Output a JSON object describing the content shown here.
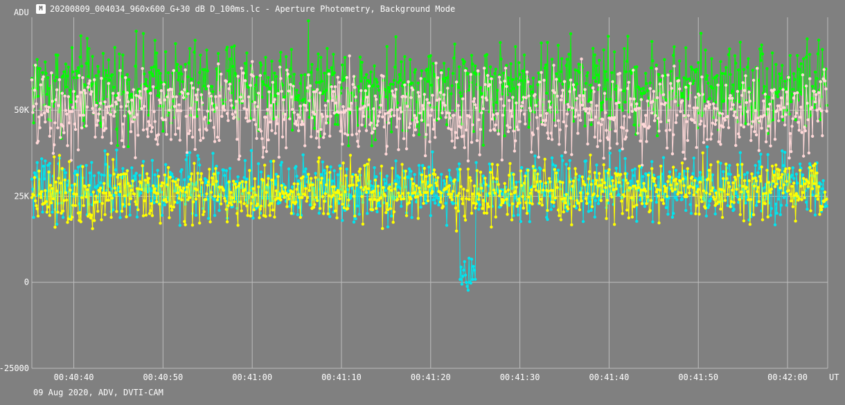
{
  "window": {
    "title": "20200809_004034_960x600_G+30 dB D_100ms.lc - Aperture Photometry, Background Mode",
    "icon": "lightcurve-app-icon",
    "icon_glyph": "M"
  },
  "footer": {
    "info": "09 Aug 2020, ADV, DVTI-CAM"
  },
  "chart_data": {
    "type": "line",
    "title": "",
    "ylabel": "ADU",
    "xlabel": "UT",
    "ylim": [
      -25000,
      77000
    ],
    "xlim": [
      "00:40:35.3",
      "00:42:04.5"
    ],
    "yticks": [
      {
        "value": 50000,
        "label": "50K"
      },
      {
        "value": 25000,
        "label": "25K"
      },
      {
        "value": 0,
        "label": "0"
      },
      {
        "value": -25000,
        "label": "-25000"
      }
    ],
    "xticks": [
      "00:40:40",
      "00:40:50",
      "00:41:00",
      "00:41:10",
      "00:41:20",
      "00:41:30",
      "00:41:40",
      "00:41:50",
      "00:42:00"
    ],
    "grid": true,
    "background_color": "#808080",
    "grid_color": "#bdbdbd",
    "sample_interval_s": 0.1,
    "series": [
      {
        "color": "#00ff00",
        "mean": 57000,
        "spread": 15000
      },
      {
        "color": "#ffd8d8",
        "mean": 50000,
        "spread": 14000
      },
      {
        "color": "#00e5ee",
        "mean": 27500,
        "spread": 10000,
        "dip": {
          "start": "00:41:23.3",
          "end": "00:41:25.0",
          "level": 2000,
          "spread": 7000
        }
      },
      {
        "color": "#ffff00",
        "mean": 26000,
        "spread": 10000
      }
    ]
  }
}
